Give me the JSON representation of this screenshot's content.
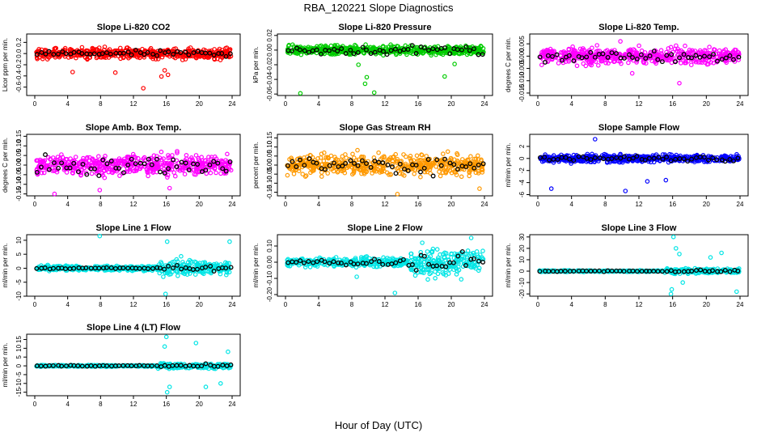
{
  "title": "RBA_120221  Slope Diagnostics",
  "xlabel": "Hour of Day (UTC)",
  "chart_data": [
    {
      "type": "scatter",
      "title": "Slope Li-820 CO2",
      "ylabel": "Licor ppm per min.",
      "xlim": [
        0,
        24
      ],
      "ylim": [
        -0.75,
        0.35
      ],
      "xticks": [
        0,
        4,
        8,
        12,
        16,
        20,
        24
      ],
      "yticks": [
        0.2,
        0,
        -0.2,
        -0.4,
        -0.6
      ],
      "ytick_labels": [
        "0.2",
        "0.0",
        "-0.2",
        "-0.4",
        "-0.6"
      ],
      "color": "#ff0000",
      "noise": 0.09,
      "outliers": [
        [
          13.2,
          -0.62
        ],
        [
          9.8,
          -0.34
        ],
        [
          4.6,
          -0.33
        ],
        [
          15.8,
          -0.3
        ],
        [
          15.4,
          -0.41
        ],
        [
          16.2,
          -0.38
        ]
      ],
      "minute_series": {
        "name": "minute",
        "color": "#000000",
        "noise": 0.05
      }
    },
    {
      "type": "scatter",
      "title": "Slope Li-820 Pressure",
      "ylabel": "kPa per min.",
      "xlim": [
        0,
        24
      ],
      "ylim": [
        -0.062,
        0.022
      ],
      "xticks": [
        0,
        4,
        8,
        12,
        16,
        20,
        24
      ],
      "yticks": [
        0.02,
        0,
        -0.02,
        -0.04,
        -0.06
      ],
      "ytick_labels": [
        "0.02",
        "0.00",
        "-0.02",
        "-0.04",
        "-0.06"
      ],
      "color": "#00cc00",
      "noise": 0.006,
      "outliers": [
        [
          1.8,
          -0.059
        ],
        [
          9.6,
          -0.046
        ],
        [
          10.7,
          -0.058
        ],
        [
          9.8,
          -0.037
        ],
        [
          19.2,
          -0.036
        ],
        [
          8.8,
          -0.02
        ],
        [
          20.4,
          -0.019
        ]
      ],
      "minute_series": {
        "name": "minute",
        "color": "#000000",
        "noise": 0.006
      }
    },
    {
      "type": "scatter",
      "title": "Slope Li-820 Temp.",
      "ylabel": "degrees C per min.",
      "xlim": [
        0,
        24
      ],
      "ylim": [
        -0.016,
        0.009
      ],
      "xticks": [
        0,
        4,
        8,
        12,
        16,
        20,
        24
      ],
      "yticks": [
        0.005,
        0,
        -0.005,
        -0.01,
        -0.015
      ],
      "ytick_labels": [
        "0.005",
        "0.000",
        "-0.005",
        "-0.010",
        "-0.015"
      ],
      "color": "#ff00ff",
      "noise": 0.003,
      "outliers": [
        [
          16.8,
          -0.011
        ],
        [
          9.8,
          0.006
        ],
        [
          11.2,
          -0.007
        ]
      ],
      "minute_series": {
        "name": "minute",
        "color": "#000000",
        "noise": 0.002
      }
    },
    {
      "type": "scatter",
      "title": "Slope Amb. Box Temp.",
      "ylabel": "degrees C per min.",
      "xlim": [
        0,
        24
      ],
      "ylim": [
        -0.16,
        0.16
      ],
      "xticks": [
        0,
        4,
        8,
        12,
        16,
        20,
        24
      ],
      "yticks": [
        0.15,
        0.1,
        0.05,
        0,
        -0.05,
        -0.1,
        -0.15
      ],
      "ytick_labels": [
        "0.15",
        "0.10",
        "0.05",
        "0.00",
        "-0.05",
        "-0.10",
        "-0.15"
      ],
      "color": "#ff00ff",
      "noise": 0.05,
      "outliers": [
        [
          7.9,
          -0.13
        ],
        [
          16.4,
          -0.12
        ],
        [
          2.4,
          -0.15
        ]
      ],
      "minute_series": {
        "name": "minute",
        "color": "#000000",
        "noise": 0.05
      }
    },
    {
      "type": "scatter",
      "title": "Slope Gas Stream RH",
      "ylabel": "percent per min.",
      "xlim": [
        0,
        24
      ],
      "ylim": [
        -0.17,
        0.17
      ],
      "xticks": [
        0,
        4,
        8,
        12,
        16,
        20,
        24
      ],
      "yticks": [
        0.15,
        0.1,
        0.05,
        0,
        -0.05,
        -0.1,
        -0.15
      ],
      "ytick_labels": [
        "0.15",
        "0.10",
        "0.05",
        "0.00",
        "-0.05",
        "-0.10",
        "-0.15"
      ],
      "color": "#ff9900",
      "noise": 0.055,
      "outliers": [
        [
          13.5,
          -0.16
        ],
        [
          23.4,
          -0.13
        ]
      ],
      "minute_series": {
        "name": "minute",
        "color": "#000000",
        "noise": 0.045
      }
    },
    {
      "type": "scatter",
      "title": "Slope Sample Flow",
      "ylabel": "ml/min per min.",
      "xlim": [
        0,
        24
      ],
      "ylim": [
        -6.2,
        4.0
      ],
      "xticks": [
        0,
        4,
        8,
        12,
        16,
        20,
        24
      ],
      "yticks": [
        2,
        0,
        -2,
        -4,
        -6
      ],
      "ytick_labels": [
        "2",
        "0",
        "-2",
        "-4",
        "-6"
      ],
      "color": "#0000ff",
      "noise": 0.6,
      "outliers": [
        [
          6.8,
          3.2
        ],
        [
          10.4,
          -5.4
        ],
        [
          1.6,
          -5.0
        ],
        [
          13.0,
          -3.8
        ],
        [
          15.2,
          -3.6
        ]
      ],
      "minute_series": {
        "name": "minute",
        "color": "#000000",
        "noise": 0.4
      }
    },
    {
      "type": "scatter",
      "title": "Slope Line 1 Flow",
      "ylabel": "ml/min per min.",
      "xlim": [
        0,
        24
      ],
      "ylim": [
        -10,
        12
      ],
      "xticks": [
        0,
        4,
        8,
        12,
        16,
        20,
        24
      ],
      "yticks": [
        10,
        5,
        0,
        -5,
        -10
      ],
      "ytick_labels": [
        "10",
        "5",
        "0",
        "-5",
        "-10"
      ],
      "color": "#00e5e5",
      "noise": 0.8,
      "outliers": [
        [
          7.9,
          11.5
        ],
        [
          15.9,
          -9.2
        ],
        [
          16.1,
          9.5
        ],
        [
          23.7,
          9.5
        ]
      ],
      "minute_series": {
        "name": "minute",
        "color": "#000000",
        "noise": 0.3
      }
    },
    {
      "type": "scatter",
      "title": "Slope Line 2 Flow",
      "ylabel": "ml/min per min.",
      "xlim": [
        0,
        24
      ],
      "ylim": [
        -0.21,
        0.17
      ],
      "xticks": [
        0,
        4,
        8,
        12,
        16,
        20,
        24
      ],
      "yticks": [
        0.1,
        0,
        -0.1,
        -0.2
      ],
      "ytick_labels": [
        "0.10",
        "0.00",
        "-0.10",
        "-0.20"
      ],
      "color": "#00e5e5",
      "noise": 0.025,
      "outliers": [
        [
          13.2,
          -0.19
        ],
        [
          8.6,
          -0.09
        ],
        [
          16.5,
          0.12
        ],
        [
          22.4,
          0.15
        ]
      ],
      "minute_series": {
        "name": "minute",
        "color": "#000000",
        "noise": 0.02
      }
    },
    {
      "type": "scatter",
      "title": "Slope Line 3 Flow",
      "ylabel": "ml/min per min.",
      "xlim": [
        0,
        24
      ],
      "ylim": [
        -22,
        32
      ],
      "xticks": [
        0,
        4,
        8,
        12,
        16,
        20,
        24
      ],
      "yticks": [
        30,
        20,
        10,
        0,
        -10,
        -20
      ],
      "ytick_labels": [
        "30",
        "20",
        "10",
        "0",
        "-10",
        "-20"
      ],
      "color": "#00e5e5",
      "noise": 0.6,
      "outliers": [
        [
          15.8,
          -20
        ],
        [
          16.1,
          30
        ],
        [
          16.4,
          20
        ],
        [
          15.9,
          -16
        ],
        [
          16.8,
          15
        ],
        [
          17.2,
          -10
        ],
        [
          21.8,
          16
        ],
        [
          20.5,
          12
        ],
        [
          23.6,
          -18
        ]
      ],
      "minute_series": {
        "name": "minute",
        "color": "#000000",
        "noise": 0.4
      }
    },
    {
      "type": "scatter",
      "title": "Slope Line 4 (LT) Flow",
      "ylabel": "ml/min per min.",
      "xlim": [
        0,
        24
      ],
      "ylim": [
        -17,
        18
      ],
      "xticks": [
        0,
        4,
        8,
        12,
        16,
        20,
        24
      ],
      "yticks": [
        15,
        10,
        5,
        0,
        -5,
        -10,
        -15
      ],
      "ytick_labels": [
        "15",
        "10",
        "5",
        "0",
        "-5",
        "-10",
        "-15"
      ],
      "color": "#00e5e5",
      "noise": 0.4,
      "outliers": [
        [
          16.0,
          16.5
        ],
        [
          16.1,
          -15
        ],
        [
          15.8,
          11
        ],
        [
          16.4,
          -12
        ],
        [
          19.6,
          13
        ],
        [
          20.8,
          -12
        ],
        [
          22.6,
          -10
        ],
        [
          23.5,
          8
        ]
      ],
      "minute_series": {
        "name": "minute",
        "color": "#000000",
        "noise": 0.3
      }
    }
  ]
}
